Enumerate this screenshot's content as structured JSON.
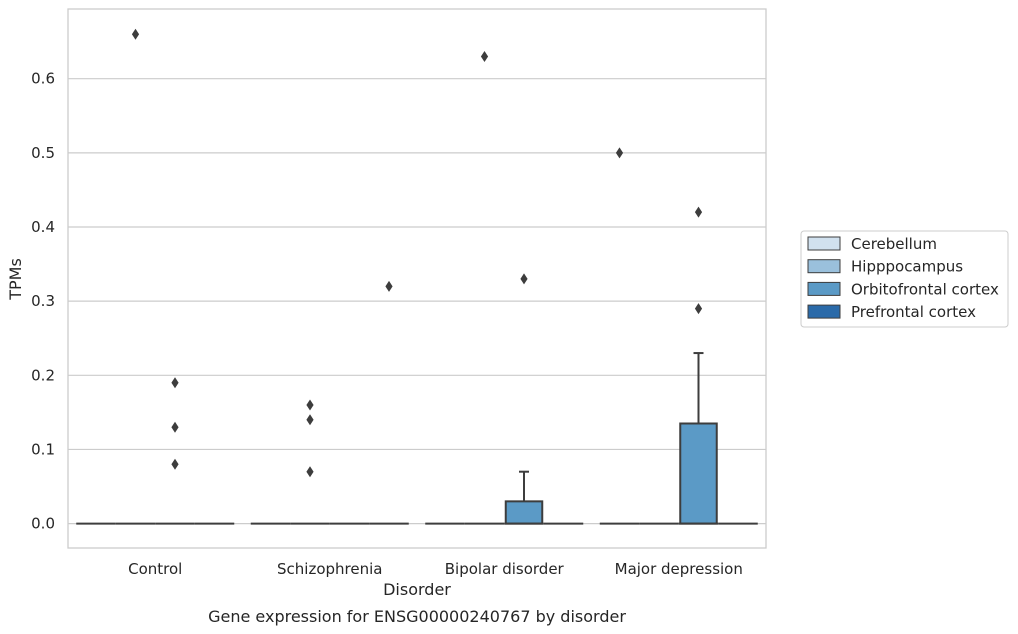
{
  "chart_data": {
    "type": "box",
    "xlabel": "Disorder",
    "ylabel": "TPMs",
    "caption": "Gene expression for ENSG00000240767 by disorder",
    "categories": [
      "Control",
      "Schizophrenia",
      "Bipolar disorder",
      "Major depression"
    ],
    "hue_order": [
      "Cerebellum",
      "Hipppocampus",
      "Orbitofrontal cortex",
      "Prefrontal cortex"
    ],
    "ylim": [
      -0.032,
      0.694
    ],
    "yticks": [
      {
        "value": 0.0,
        "label": "0.0"
      },
      {
        "value": 0.1,
        "label": "0.1"
      },
      {
        "value": 0.2,
        "label": "0.2"
      },
      {
        "value": 0.3,
        "label": "0.3"
      },
      {
        "value": 0.4,
        "label": "0.4"
      },
      {
        "value": 0.5,
        "label": "0.5"
      },
      {
        "value": 0.6,
        "label": "0.6"
      }
    ],
    "grid": "horizontal",
    "legend_position": "right",
    "colors": {
      "Cerebellum": "#d1e1ef",
      "Hipppocampus": "#9ac0dc",
      "Orbitofrontal cortex": "#5b9ac6",
      "Prefrontal cortex": "#2a6aa9"
    },
    "series": [
      {
        "name": "Cerebellum",
        "boxes": [
          {
            "q1": 0,
            "median": 0,
            "q3": 0,
            "whislo": 0,
            "whishi": 0,
            "fliers": []
          },
          {
            "q1": 0,
            "median": 0,
            "q3": 0,
            "whislo": 0,
            "whishi": 0,
            "fliers": []
          },
          {
            "q1": 0,
            "median": 0,
            "q3": 0,
            "whislo": 0,
            "whishi": 0,
            "fliers": []
          },
          {
            "q1": 0,
            "median": 0,
            "q3": 0,
            "whislo": 0,
            "whishi": 0,
            "fliers": [
              0.5
            ]
          }
        ]
      },
      {
        "name": "Hipppocampus",
        "boxes": [
          {
            "q1": 0,
            "median": 0,
            "q3": 0,
            "whislo": 0,
            "whishi": 0,
            "fliers": [
              0.66
            ]
          },
          {
            "q1": 0,
            "median": 0,
            "q3": 0,
            "whislo": 0,
            "whishi": 0,
            "fliers": [
              0.07,
              0.14,
              0.16
            ]
          },
          {
            "q1": 0,
            "median": 0,
            "q3": 0,
            "whislo": 0,
            "whishi": 0,
            "fliers": [
              0.63
            ]
          },
          {
            "q1": 0,
            "median": 0,
            "q3": 0,
            "whislo": 0,
            "whishi": 0,
            "fliers": []
          }
        ]
      },
      {
        "name": "Orbitofrontal cortex",
        "boxes": [
          {
            "q1": 0,
            "median": 0,
            "q3": 0,
            "whislo": 0,
            "whishi": 0,
            "fliers": [
              0.08,
              0.13,
              0.19
            ]
          },
          {
            "q1": 0,
            "median": 0,
            "q3": 0,
            "whislo": 0,
            "whishi": 0,
            "fliers": []
          },
          {
            "q1": 0,
            "median": 0,
            "q3": 0.03,
            "whislo": 0,
            "whishi": 0.07,
            "fliers": [
              0.33
            ]
          },
          {
            "q1": 0,
            "median": 0,
            "q3": 0.135,
            "whislo": 0,
            "whishi": 0.23,
            "fliers": [
              0.29,
              0.42
            ]
          }
        ]
      },
      {
        "name": "Prefrontal cortex",
        "boxes": [
          {
            "q1": 0,
            "median": 0,
            "q3": 0,
            "whislo": 0,
            "whishi": 0,
            "fliers": []
          },
          {
            "q1": 0,
            "median": 0,
            "q3": 0,
            "whislo": 0,
            "whishi": 0,
            "fliers": [
              0.32
            ]
          },
          {
            "q1": 0,
            "median": 0,
            "q3": 0,
            "whislo": 0,
            "whishi": 0,
            "fliers": []
          },
          {
            "q1": 0,
            "median": 0,
            "q3": 0,
            "whislo": 0,
            "whishi": 0,
            "fliers": []
          }
        ]
      }
    ]
  }
}
